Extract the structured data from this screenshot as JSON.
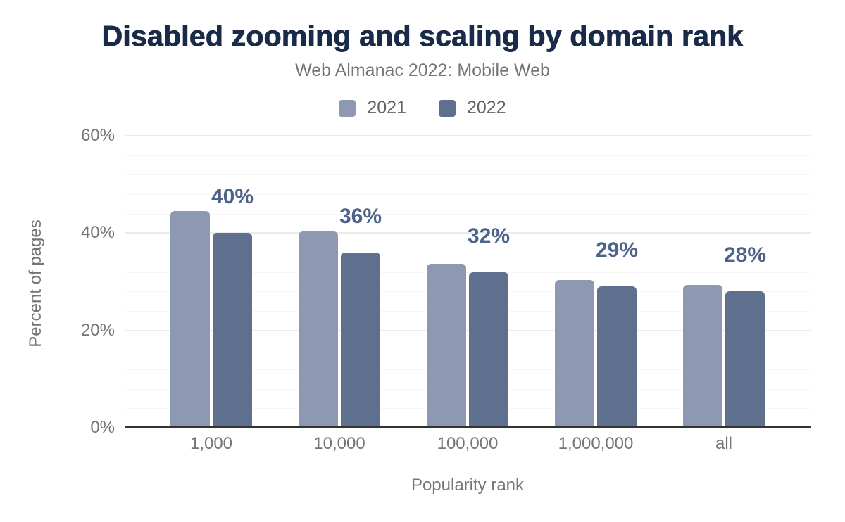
{
  "chart_data": {
    "type": "bar",
    "title": "Disabled zooming and scaling by domain rank",
    "subtitle": "Web Almanac 2022: Mobile Web",
    "xlabel": "Popularity rank",
    "ylabel": "Percent of pages",
    "categories": [
      "1,000",
      "10,000",
      "100,000",
      "1,000,000",
      "all"
    ],
    "series": [
      {
        "name": "2021",
        "color": "#8d99b3",
        "values": [
          44.6,
          40.4,
          33.7,
          30.3,
          29.3
        ],
        "data_labels": null
      },
      {
        "name": "2022",
        "color": "#5f6f8e",
        "values": [
          40,
          36,
          32,
          29,
          28
        ],
        "data_labels": [
          "40%",
          "36%",
          "32%",
          "29%",
          "28%"
        ]
      }
    ],
    "ylim": [
      0,
      60
    ],
    "yticks": [
      {
        "value": 0,
        "label": "0%"
      },
      {
        "value": 20,
        "label": "20%"
      },
      {
        "value": 40,
        "label": "40%"
      },
      {
        "value": 60,
        "label": "60%"
      }
    ],
    "minor_gridline_step": 4,
    "grid": true,
    "legend_position": "top",
    "colors": {
      "title": "#1a2b49",
      "subtitle": "#757575",
      "data_label": "#4e6389",
      "axis_line": "#333333",
      "major_gridline": "#ebebeb",
      "minor_gridline": "#f6f6f6"
    }
  }
}
